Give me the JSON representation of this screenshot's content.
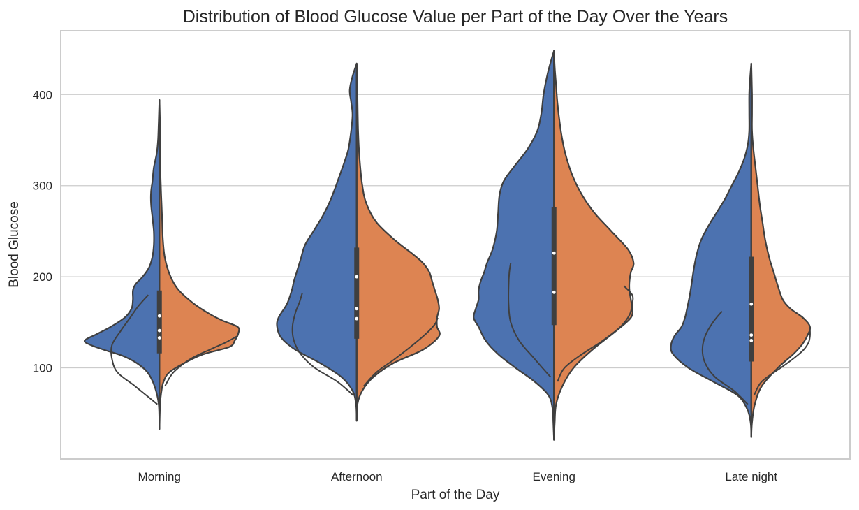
{
  "chart_data": {
    "type": "violin",
    "title": "Distribution of Blood Glucose Value per Part of the Day Over the Years",
    "xlabel": "Part of the Day",
    "ylabel": "Blood Glucose",
    "categories": [
      "Morning",
      "Afternoon",
      "Evening",
      "Late night"
    ],
    "yticks": [
      100,
      200,
      300,
      400
    ],
    "ylim": [
      0,
      470
    ],
    "grid": true,
    "split": true,
    "colors": {
      "left": "#4c72b0",
      "right": "#dd8452",
      "outline": "#3f3f3f",
      "grid": "#cccccc"
    },
    "violins": [
      {
        "category": "Morning",
        "y_min": 33,
        "y_max": 394,
        "box": {
          "q1": 116,
          "q3": 185,
          "markers": [
            133,
            141,
            157
          ]
        },
        "left": [
          [
            33,
            0
          ],
          [
            60,
            1
          ],
          [
            80,
            7
          ],
          [
            95,
            17
          ],
          [
            105,
            32
          ],
          [
            113,
            52
          ],
          [
            120,
            80
          ],
          [
            125,
            98
          ],
          [
            130,
            107
          ],
          [
            137,
            90
          ],
          [
            145,
            70
          ],
          [
            155,
            50
          ],
          [
            165,
            40
          ],
          [
            175,
            38
          ],
          [
            185,
            38
          ],
          [
            192,
            34
          ],
          [
            200,
            24
          ],
          [
            210,
            15
          ],
          [
            222,
            10
          ],
          [
            235,
            8
          ],
          [
            250,
            8
          ],
          [
            265,
            10
          ],
          [
            280,
            12
          ],
          [
            293,
            12
          ],
          [
            305,
            10
          ],
          [
            320,
            8
          ],
          [
            335,
            4
          ],
          [
            350,
            2
          ],
          [
            370,
            1
          ],
          [
            394,
            0
          ]
        ],
        "right": [
          [
            33,
            0
          ],
          [
            60,
            1
          ],
          [
            75,
            3
          ],
          [
            85,
            6
          ],
          [
            95,
            14
          ],
          [
            105,
            35
          ],
          [
            115,
            63
          ],
          [
            123,
            100
          ],
          [
            130,
            108
          ],
          [
            138,
            113
          ],
          [
            145,
            112
          ],
          [
            152,
            90
          ],
          [
            160,
            70
          ],
          [
            170,
            50
          ],
          [
            185,
            28
          ],
          [
            200,
            16
          ],
          [
            220,
            8
          ],
          [
            240,
            5
          ],
          [
            260,
            4
          ],
          [
            280,
            3
          ],
          [
            300,
            2
          ],
          [
            330,
            1
          ],
          [
            360,
            1
          ],
          [
            394,
            0
          ]
        ],
        "inner_left": [
          [
            60,
            3
          ],
          [
            80,
            35
          ],
          [
            95,
            60
          ],
          [
            110,
            68
          ],
          [
            125,
            68
          ],
          [
            140,
            56
          ],
          [
            155,
            42
          ],
          [
            168,
            30
          ],
          [
            180,
            16
          ]
        ],
        "inner_right": [
          [
            80,
            8
          ],
          [
            95,
            20
          ],
          [
            110,
            45
          ],
          [
            120,
            72
          ],
          [
            128,
            95
          ],
          [
            135,
            112
          ]
        ]
      },
      {
        "category": "Afternoon",
        "y_min": 42,
        "y_max": 434,
        "box": {
          "q1": 132,
          "q3": 232,
          "markers": [
            154,
            165,
            200
          ]
        },
        "left": [
          [
            42,
            0
          ],
          [
            60,
            1
          ],
          [
            75,
            6
          ],
          [
            90,
            22
          ],
          [
            105,
            52
          ],
          [
            120,
            88
          ],
          [
            133,
            108
          ],
          [
            145,
            114
          ],
          [
            155,
            112
          ],
          [
            170,
            100
          ],
          [
            185,
            93
          ],
          [
            195,
            90
          ],
          [
            205,
            86
          ],
          [
            220,
            80
          ],
          [
            235,
            74
          ],
          [
            250,
            62
          ],
          [
            265,
            50
          ],
          [
            280,
            40
          ],
          [
            295,
            32
          ],
          [
            310,
            25
          ],
          [
            325,
            18
          ],
          [
            340,
            12
          ],
          [
            360,
            8
          ],
          [
            378,
            6
          ],
          [
            392,
            8
          ],
          [
            405,
            10
          ],
          [
            420,
            6
          ],
          [
            434,
            0
          ]
        ],
        "right": [
          [
            42,
            0
          ],
          [
            60,
            1
          ],
          [
            75,
            8
          ],
          [
            90,
            24
          ],
          [
            105,
            52
          ],
          [
            120,
            95
          ],
          [
            135,
            118
          ],
          [
            145,
            115
          ],
          [
            155,
            115
          ],
          [
            165,
            118
          ],
          [
            175,
            116
          ],
          [
            185,
            112
          ],
          [
            195,
            108
          ],
          [
            205,
            104
          ],
          [
            215,
            95
          ],
          [
            225,
            80
          ],
          [
            240,
            55
          ],
          [
            260,
            28
          ],
          [
            280,
            14
          ],
          [
            300,
            8
          ],
          [
            330,
            4
          ],
          [
            360,
            2
          ],
          [
            400,
            1
          ],
          [
            434,
            0
          ]
        ],
        "inner_left": [
          [
            70,
            5
          ],
          [
            85,
            28
          ],
          [
            100,
            60
          ],
          [
            115,
            80
          ],
          [
            130,
            90
          ],
          [
            145,
            92
          ],
          [
            160,
            88
          ],
          [
            172,
            82
          ],
          [
            182,
            78
          ]
        ],
        "inner_right": [
          [
            80,
            10
          ],
          [
            95,
            28
          ],
          [
            110,
            55
          ],
          [
            125,
            80
          ],
          [
            138,
            100
          ],
          [
            148,
            112
          ],
          [
            155,
            116
          ]
        ]
      },
      {
        "category": "Evening",
        "y_min": 21,
        "y_max": 448,
        "box": {
          "q1": 147,
          "q3": 276,
          "markers": [
            183,
            226
          ]
        },
        "left": [
          [
            21,
            0
          ],
          [
            40,
            1
          ],
          [
            55,
            2
          ],
          [
            70,
            8
          ],
          [
            85,
            28
          ],
          [
            100,
            55
          ],
          [
            115,
            80
          ],
          [
            130,
            98
          ],
          [
            145,
            108
          ],
          [
            155,
            115
          ],
          [
            165,
            112
          ],
          [
            175,
            108
          ],
          [
            185,
            108
          ],
          [
            195,
            105
          ],
          [
            205,
            100
          ],
          [
            215,
            96
          ],
          [
            230,
            88
          ],
          [
            250,
            82
          ],
          [
            270,
            80
          ],
          [
            290,
            78
          ],
          [
            305,
            72
          ],
          [
            320,
            58
          ],
          [
            340,
            38
          ],
          [
            360,
            24
          ],
          [
            380,
            18
          ],
          [
            400,
            15
          ],
          [
            420,
            10
          ],
          [
            435,
            5
          ],
          [
            448,
            0
          ]
        ],
        "right": [
          [
            21,
            0
          ],
          [
            40,
            1
          ],
          [
            60,
            3
          ],
          [
            80,
            12
          ],
          [
            100,
            28
          ],
          [
            120,
            55
          ],
          [
            140,
            88
          ],
          [
            155,
            110
          ],
          [
            165,
            112
          ],
          [
            175,
            110
          ],
          [
            185,
            108
          ],
          [
            195,
            108
          ],
          [
            205,
            110
          ],
          [
            215,
            114
          ],
          [
            230,
            106
          ],
          [
            250,
            82
          ],
          [
            270,
            58
          ],
          [
            290,
            40
          ],
          [
            310,
            27
          ],
          [
            330,
            18
          ],
          [
            350,
            12
          ],
          [
            370,
            8
          ],
          [
            390,
            5
          ],
          [
            410,
            3
          ],
          [
            430,
            1
          ],
          [
            448,
            0
          ]
        ],
        "inner_left": [
          [
            90,
            5
          ],
          [
            110,
            28
          ],
          [
            130,
            50
          ],
          [
            150,
            62
          ],
          [
            170,
            65
          ],
          [
            190,
            65
          ],
          [
            205,
            64
          ],
          [
            215,
            62
          ]
        ],
        "inner_right": [
          [
            85,
            5
          ],
          [
            100,
            15
          ],
          [
            115,
            40
          ],
          [
            130,
            70
          ],
          [
            145,
            95
          ],
          [
            158,
            108
          ],
          [
            170,
            112
          ],
          [
            180,
            112
          ],
          [
            190,
            100
          ]
        ]
      },
      {
        "category": "Late night",
        "y_min": 24,
        "y_max": 434,
        "box": {
          "q1": 107,
          "q3": 222,
          "markers": [
            130,
            136,
            170
          ]
        },
        "left": [
          [
            24,
            0
          ],
          [
            40,
            1
          ],
          [
            55,
            6
          ],
          [
            70,
            20
          ],
          [
            85,
            55
          ],
          [
            100,
            90
          ],
          [
            115,
            112
          ],
          [
            125,
            115
          ],
          [
            135,
            110
          ],
          [
            145,
            100
          ],
          [
            155,
            95
          ],
          [
            165,
            92
          ],
          [
            180,
            88
          ],
          [
            195,
            85
          ],
          [
            210,
            82
          ],
          [
            225,
            78
          ],
          [
            240,
            72
          ],
          [
            255,
            62
          ],
          [
            270,
            50
          ],
          [
            285,
            38
          ],
          [
            300,
            28
          ],
          [
            315,
            18
          ],
          [
            330,
            10
          ],
          [
            345,
            5
          ],
          [
            360,
            3
          ],
          [
            380,
            3
          ],
          [
            400,
            3
          ],
          [
            415,
            2
          ],
          [
            434,
            0
          ]
        ],
        "right": [
          [
            24,
            0
          ],
          [
            40,
            1
          ],
          [
            60,
            5
          ],
          [
            80,
            15
          ],
          [
            100,
            38
          ],
          [
            115,
            60
          ],
          [
            125,
            72
          ],
          [
            135,
            80
          ],
          [
            145,
            84
          ],
          [
            155,
            74
          ],
          [
            165,
            56
          ],
          [
            175,
            45
          ],
          [
            190,
            38
          ],
          [
            205,
            32
          ],
          [
            220,
            26
          ],
          [
            240,
            20
          ],
          [
            260,
            16
          ],
          [
            280,
            12
          ],
          [
            300,
            9
          ],
          [
            320,
            6
          ],
          [
            340,
            3
          ],
          [
            360,
            1
          ],
          [
            380,
            1
          ],
          [
            400,
            1
          ],
          [
            434,
            0
          ]
        ],
        "inner_left": [
          [
            60,
            5
          ],
          [
            75,
            25
          ],
          [
            90,
            52
          ],
          [
            105,
            66
          ],
          [
            120,
            70
          ],
          [
            135,
            66
          ],
          [
            150,
            55
          ],
          [
            162,
            42
          ]
        ],
        "inner_right": [
          [
            70,
            4
          ],
          [
            85,
            15
          ],
          [
            100,
            42
          ],
          [
            110,
            60
          ],
          [
            120,
            75
          ],
          [
            128,
            82
          ],
          [
            135,
            84
          ],
          [
            142,
            84
          ]
        ]
      }
    ]
  }
}
